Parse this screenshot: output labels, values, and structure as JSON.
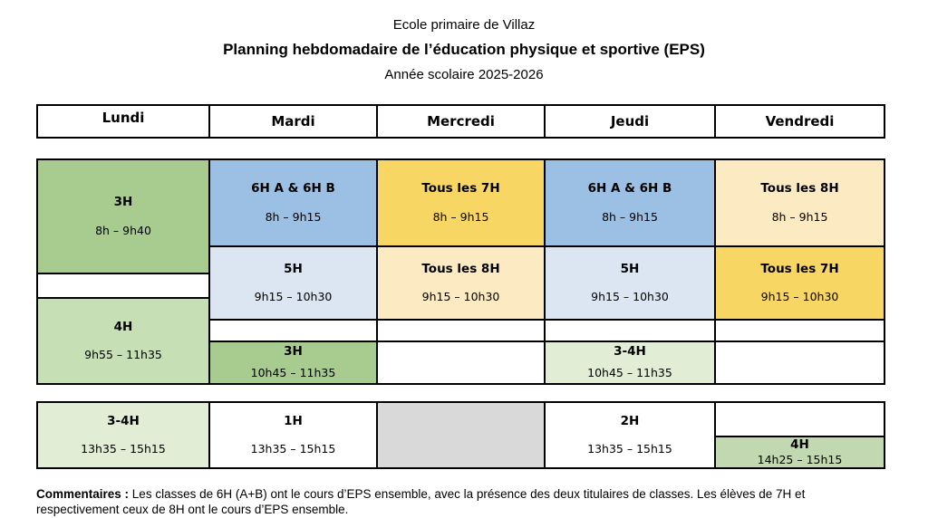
{
  "title_block": {
    "school": "Ecole primaire de Villaz",
    "title": "Planning hebdomadaire de l’éducation physique et sportive (EPS)",
    "year": "Année scolaire 2025-2026"
  },
  "days": {
    "lundi": "Lundi",
    "mardi": "Mardi",
    "mercredi": "Mercredi",
    "jeudi": "Jeudi",
    "vendredi": "Vendredi"
  },
  "colors": {
    "green_medium": "#A8CC8F",
    "green_light": "#C6DFB4",
    "green_pale": "#E1EDD5",
    "green_sage": "#C2D8B0",
    "blue_medium": "#9CC0E4",
    "blue_light": "#DCE6F2",
    "gold": "#F8D663",
    "cream": "#FBEAC2",
    "grey": "#D9D9D9",
    "white": "#FFFFFF"
  },
  "morning": {
    "lundi": {
      "c1": {
        "label": "3H",
        "time": "8h – 9h40"
      },
      "c2": {
        "label": "4H",
        "time": "9h55 – 11h35"
      }
    },
    "mardi": {
      "r1": {
        "label": "6H A & 6H B",
        "time": "8h – 9h15"
      },
      "r2": {
        "label": "5H",
        "time": "9h15 – 10h30"
      },
      "r3": {
        "label": "3H",
        "time": "10h45 – 11h35"
      }
    },
    "mercredi": {
      "r1": {
        "label": "Tous les 7H",
        "time": "8h – 9h15"
      },
      "r2": {
        "label": "Tous les 8H",
        "time": "9h15 – 10h30"
      }
    },
    "jeudi": {
      "r1": {
        "label": "6H A & 6H B",
        "time": "8h – 9h15"
      },
      "r2": {
        "label": "5H",
        "time": "9h15 – 10h30"
      },
      "r3": {
        "label": "3-4H",
        "time": "10h45 – 11h35"
      }
    },
    "vendredi": {
      "r1": {
        "label": "Tous les 8H",
        "time": "8h – 9h15"
      },
      "r2": {
        "label": "Tous les 7H",
        "time": "9h15 – 10h30"
      }
    }
  },
  "afternoon": {
    "lundi": {
      "label": "3-4H",
      "time": "13h35 – 15h15"
    },
    "mardi": {
      "label": "1H",
      "time": "13h35 – 15h15"
    },
    "jeudi": {
      "label": "2H",
      "time": "13h35 – 15h15"
    },
    "vendredi": {
      "label": "4H",
      "time": "14h25 – 15h15"
    }
  },
  "comments": {
    "label": "Commentaires :",
    "text": "Les classes de 6H (A+B) ont le cours d’EPS ensemble, avec la présence des deux titulaires de classes. Les élèves de 7H et respectivement ceux de 8H ont le cours d’EPS ensemble."
  }
}
